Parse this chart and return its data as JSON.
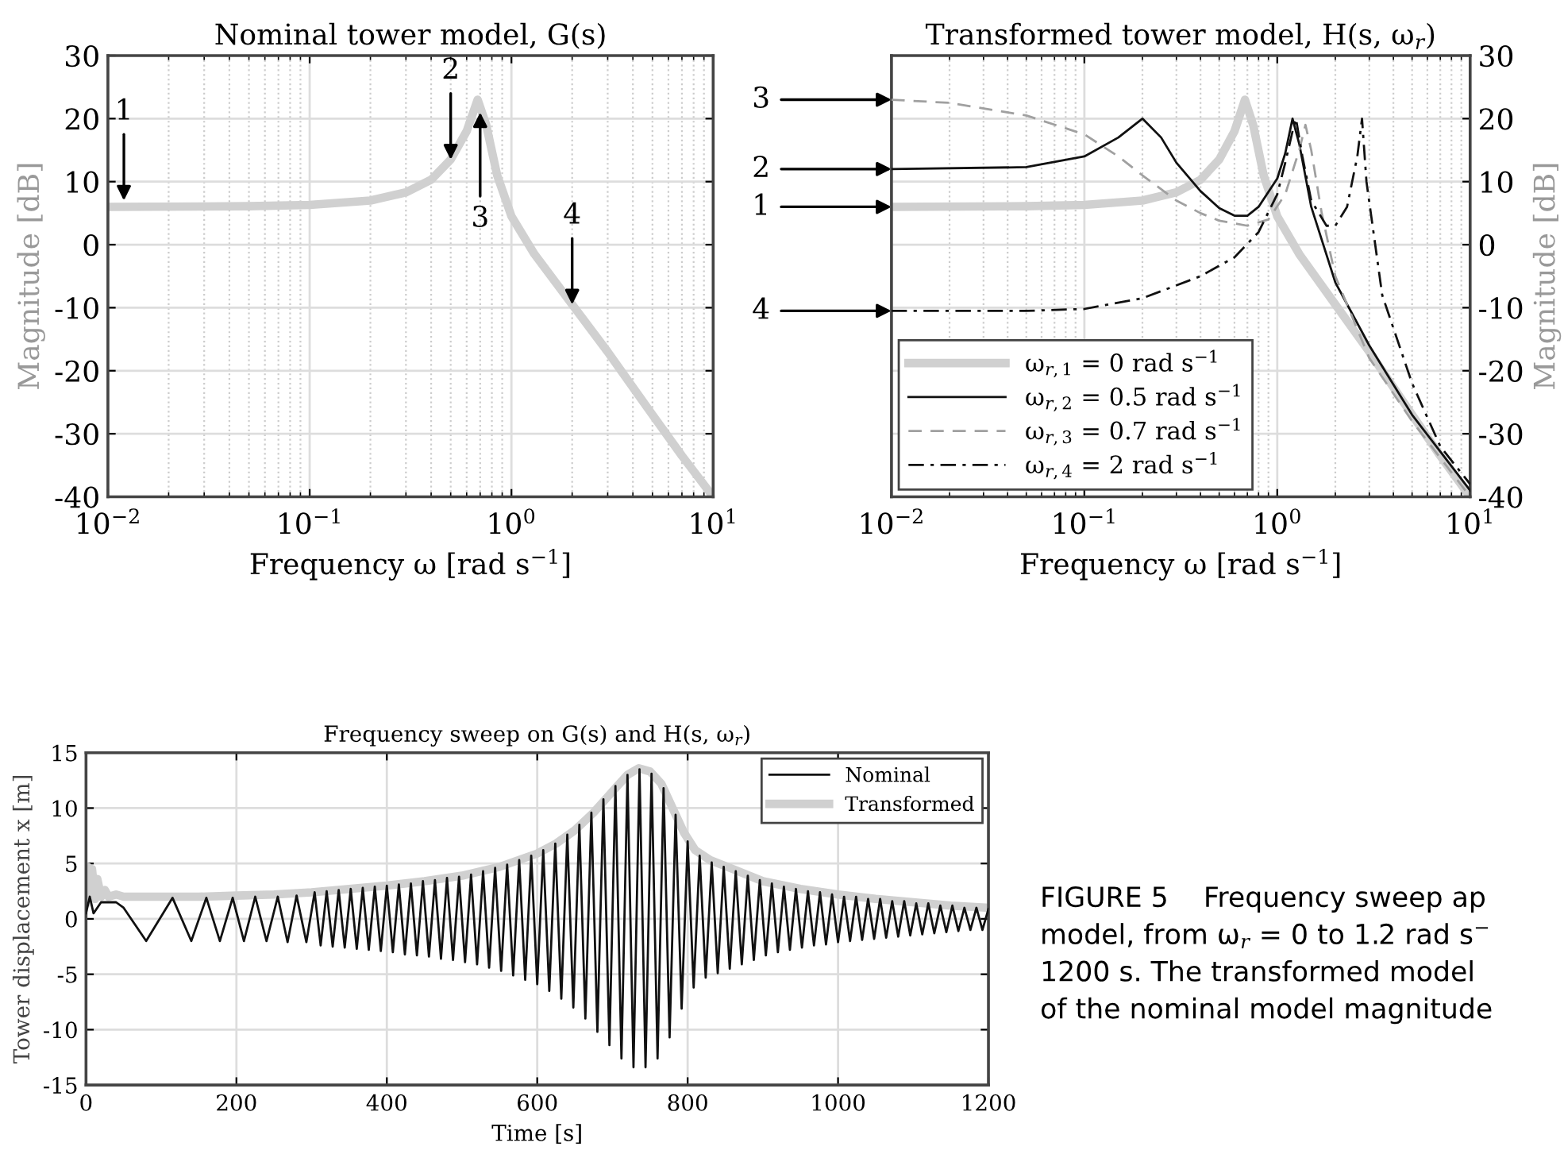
{
  "chart_data": [
    {
      "type": "line",
      "title": "Nominal tower model, G(s)",
      "xlabel": "Frequency ω [rad s$^{−1}$]",
      "ylabel": "Magnitude [dB]",
      "log": "x",
      "grid": true,
      "xlim": [
        0.01,
        10
      ],
      "xticks": [
        {
          "value": 0.01,
          "label": "10$^{−2}$"
        },
        {
          "value": 0.1,
          "label": "10$^{−1}$"
        },
        {
          "value": 1,
          "label": "10$^{0}$"
        },
        {
          "value": 10,
          "label": "10$^{1}$"
        }
      ],
      "ylim": [
        -40,
        30
      ],
      "yticks": [
        -40,
        -30,
        -20,
        -10,
        0,
        10,
        20,
        30
      ],
      "series": [
        {
          "color": "#d0d0d0",
          "line_style": "solid",
          "x": [
            0.01,
            0.05,
            0.1,
            0.2,
            0.3,
            0.4,
            0.5,
            0.6,
            0.68,
            0.75,
            0.85,
            1.0,
            1.3,
            2,
            3,
            5,
            7,
            10
          ],
          "values": [
            6,
            6.1,
            6.3,
            7,
            8.3,
            10.3,
            13.5,
            18,
            23,
            19,
            11,
            4.5,
            -1.5,
            -9.5,
            -17,
            -27,
            -33.5,
            -40
          ]
        }
      ],
      "annotations": [
        {
          "text": "1",
          "x": 0.012,
          "y": 7
        },
        {
          "text": "2",
          "x": 0.5,
          "y": 13.5
        },
        {
          "text": "3",
          "x": 0.7,
          "y": 21
        },
        {
          "text": "4",
          "x": 2,
          "y": -9.5
        }
      ]
    },
    {
      "type": "line",
      "title": "Transformed tower model, H(s, ω$_{r}$)",
      "xlabel": "Frequency ω [rad s$^{−1}$]",
      "y2label": "Magnitude [dB]",
      "log": "x",
      "grid": true,
      "legend": "bottom left",
      "xlim": [
        0.01,
        10
      ],
      "xticks": [
        {
          "value": 0.01,
          "label": "10$^{−2}$"
        },
        {
          "value": 0.1,
          "label": "10$^{−1}$"
        },
        {
          "value": 1,
          "label": "10$^{0}$"
        },
        {
          "value": 10,
          "label": "10$^{1}$"
        }
      ],
      "y2lim": [
        -40,
        30
      ],
      "y2ticks": [
        -40,
        -30,
        -20,
        -10,
        0,
        10,
        20,
        30
      ],
      "series": [
        {
          "name": "ω$_{r,1}$ = 0 rad s$^{−1}$",
          "axis": "y2",
          "color": "#d0d0d0",
          "line_style": "solid",
          "x": [
            0.01,
            0.05,
            0.1,
            0.2,
            0.3,
            0.4,
            0.5,
            0.6,
            0.68,
            0.75,
            0.85,
            1.0,
            1.3,
            2,
            3,
            5,
            7,
            10
          ],
          "values": [
            6,
            6.1,
            6.3,
            7,
            8.3,
            10.3,
            13.5,
            18,
            23,
            19,
            11,
            4.5,
            -1.5,
            -9.5,
            -17,
            -27,
            -33.5,
            -40
          ]
        },
        {
          "name": "ω$_{r,2}$ = 0.5 rad s$^{−1}$",
          "axis": "y2",
          "color": "#111111",
          "line_style": "solid",
          "x": [
            0.01,
            0.05,
            0.1,
            0.15,
            0.2,
            0.25,
            0.3,
            0.4,
            0.5,
            0.6,
            0.7,
            0.8,
            1.0,
            1.1,
            1.2,
            1.3,
            1.5,
            2,
            3,
            5,
            10
          ],
          "values": [
            12,
            12.3,
            14,
            17,
            20,
            17,
            13,
            8.5,
            5.8,
            4.6,
            4.6,
            6,
            10.5,
            14.5,
            20,
            16,
            6,
            -6,
            -16,
            -27,
            -39
          ]
        },
        {
          "name": "ω$_{r,3}$ = 0.7 rad s$^{−1}$",
          "axis": "y2",
          "color": "#a0a0a0",
          "line_style": "dashed",
          "x": [
            0.01,
            0.02,
            0.05,
            0.1,
            0.15,
            0.2,
            0.3,
            0.4,
            0.5,
            0.7,
            0.9,
            1.1,
            1.3,
            1.4,
            1.5,
            1.7,
            2,
            3,
            5,
            10
          ],
          "values": [
            23,
            22.5,
            20.5,
            17.5,
            14,
            11,
            7,
            5,
            3.8,
            3,
            4,
            8,
            15,
            19,
            15,
            5,
            -5,
            -18,
            -28,
            -40
          ]
        },
        {
          "name": "ω$_{r,4}$ = 2 rad s$^{−1}$",
          "axis": "y2",
          "color": "#111111",
          "line_style": "dashdot",
          "x": [
            0.01,
            0.05,
            0.1,
            0.2,
            0.4,
            0.6,
            0.8,
            1.0,
            1.1,
            1.2,
            1.25,
            1.35,
            1.5,
            1.8,
            2.0,
            2.3,
            2.6,
            2.75,
            2.9,
            3.5,
            5,
            7,
            10
          ],
          "values": [
            -10.5,
            -10.5,
            -10.2,
            -8.5,
            -5,
            -2,
            2,
            8,
            13,
            18,
            20,
            14,
            7,
            3,
            3,
            6,
            14,
            20,
            10,
            -8,
            -22,
            -32,
            -38
          ]
        }
      ],
      "annotations": [
        "3",
        "2",
        "1",
        "4"
      ]
    },
    {
      "type": "line",
      "title": "Frequency sweep on G(s) and H(s, ω$_{r}$)",
      "xlabel": "Time [s]",
      "ylabel": "Tower displacement x [m]",
      "grid": true,
      "legend": "top right",
      "xlim": [
        0,
        1200
      ],
      "xticks": [
        0,
        200,
        400,
        600,
        800,
        1000,
        1200
      ],
      "ylim": [
        -15,
        15
      ],
      "yticks": [
        -15,
        -10,
        -5,
        0,
        5,
        10,
        15
      ],
      "series": [
        {
          "name": "Nominal",
          "color": "#111111",
          "line_style": "solid",
          "x": [
            0,
            5,
            10,
            20,
            30,
            40,
            50,
            80,
            115,
            140,
            160,
            178,
            195,
            210,
            225,
            240,
            255,
            268,
            280,
            293,
            304,
            312,
            320,
            328,
            336,
            344,
            352,
            360,
            368,
            376,
            384,
            392,
            400,
            408,
            416,
            424,
            432,
            440,
            448,
            456,
            464,
            472,
            480,
            488,
            496,
            504,
            512,
            520,
            528,
            536,
            544,
            552,
            560,
            568,
            576,
            584,
            592,
            600,
            608,
            616,
            624,
            632,
            640,
            648,
            656,
            664,
            672,
            680,
            688,
            696,
            704,
            712,
            720,
            728,
            736,
            744,
            752,
            760,
            768,
            776,
            784,
            792,
            800,
            808,
            816,
            824,
            832,
            840,
            848,
            856,
            864,
            872,
            880,
            888,
            896,
            904,
            912,
            920,
            928,
            936,
            944,
            952,
            960,
            968,
            976,
            984,
            992,
            1000,
            1008,
            1016,
            1024,
            1032,
            1040,
            1048,
            1056,
            1064,
            1072,
            1080,
            1088,
            1096,
            1104,
            1112,
            1120,
            1128,
            1136,
            1144,
            1152,
            1160,
            1168,
            1176,
            1184,
            1192,
            1200
          ],
          "values": [
            0.5,
            2,
            0.5,
            1.5,
            1.5,
            1.5,
            1,
            -2,
            1.9,
            -2,
            1.9,
            -2,
            1.9,
            -2,
            2,
            -2,
            2,
            -2.1,
            2.1,
            -2.1,
            2.4,
            -2.4,
            2.5,
            -2.5,
            2.6,
            -2.6,
            2.7,
            -2.7,
            2.8,
            -2.8,
            2.9,
            -2.9,
            3,
            -3,
            3.1,
            -3.2,
            3.2,
            -3.3,
            3.4,
            -3.4,
            3.5,
            -3.6,
            3.7,
            -3.7,
            3.8,
            -3.9,
            4,
            -4.1,
            4.3,
            -4.4,
            4.6,
            -4.7,
            4.9,
            -5.1,
            5.3,
            -5.5,
            5.7,
            -5.9,
            6.2,
            -6.5,
            6.8,
            -7.2,
            7.6,
            -8,
            8.5,
            -9,
            9.6,
            -10.2,
            10.8,
            -11.4,
            12,
            -12.6,
            13,
            -13.4,
            13.5,
            -13.4,
            13.1,
            -12.6,
            11.8,
            -10.7,
            9.4,
            -8.1,
            7,
            -6.2,
            5.7,
            -5.3,
            5.1,
            -4.9,
            4.7,
            -4.5,
            4.3,
            -4.1,
            3.9,
            -3.7,
            3.5,
            -3.3,
            3.2,
            -3,
            2.9,
            -2.8,
            2.7,
            -2.6,
            2.5,
            -2.4,
            2.4,
            -2.3,
            2.2,
            -2.1,
            2,
            -2,
            2,
            -1.9,
            1.8,
            -1.8,
            1.8,
            -1.7,
            1.6,
            -1.6,
            1.6,
            -1.5,
            1.4,
            -1.4,
            1.4,
            -1.3,
            1.2,
            -1.2,
            1.2,
            -1.1,
            1,
            -1,
            1,
            -1,
            0.9
          ]
        },
        {
          "name": "Transformed",
          "color": "#d0d0d0",
          "line_style": "solid",
          "x": [
            0,
            2,
            5,
            8,
            12,
            15,
            20,
            25,
            30,
            40,
            50,
            80,
            100,
            150,
            200,
            250,
            300,
            350,
            400,
            450,
            500,
            550,
            600,
            625,
            650,
            675,
            700,
            720,
            735,
            750,
            765,
            780,
            795,
            810,
            830,
            860,
            900,
            950,
            1000,
            1050,
            1100,
            1150,
            1200
          ],
          "values": [
            1.5,
            4.7,
            2,
            4.5,
            1.8,
            3.6,
            2,
            2.6,
            2,
            2.2,
            2,
            2,
            2,
            2,
            2.1,
            2.2,
            2.4,
            2.7,
            3,
            3.4,
            3.9,
            4.7,
            5.9,
            6.8,
            8,
            9.6,
            11.5,
            13,
            13.6,
            13.3,
            12.2,
            10,
            7.8,
            6.2,
            5.3,
            4.5,
            3.4,
            2.7,
            2.2,
            1.8,
            1.5,
            1.2,
            1
          ]
        }
      ],
      "annotations": [
        "FIGURE 5    Frequency sweep ap\nmodel, from ω$_{r}$ = 0 to 1.2 rad s$^{−}$\n1200 s. The transformed model\nof the nominal model magnitude"
      ]
    }
  ]
}
